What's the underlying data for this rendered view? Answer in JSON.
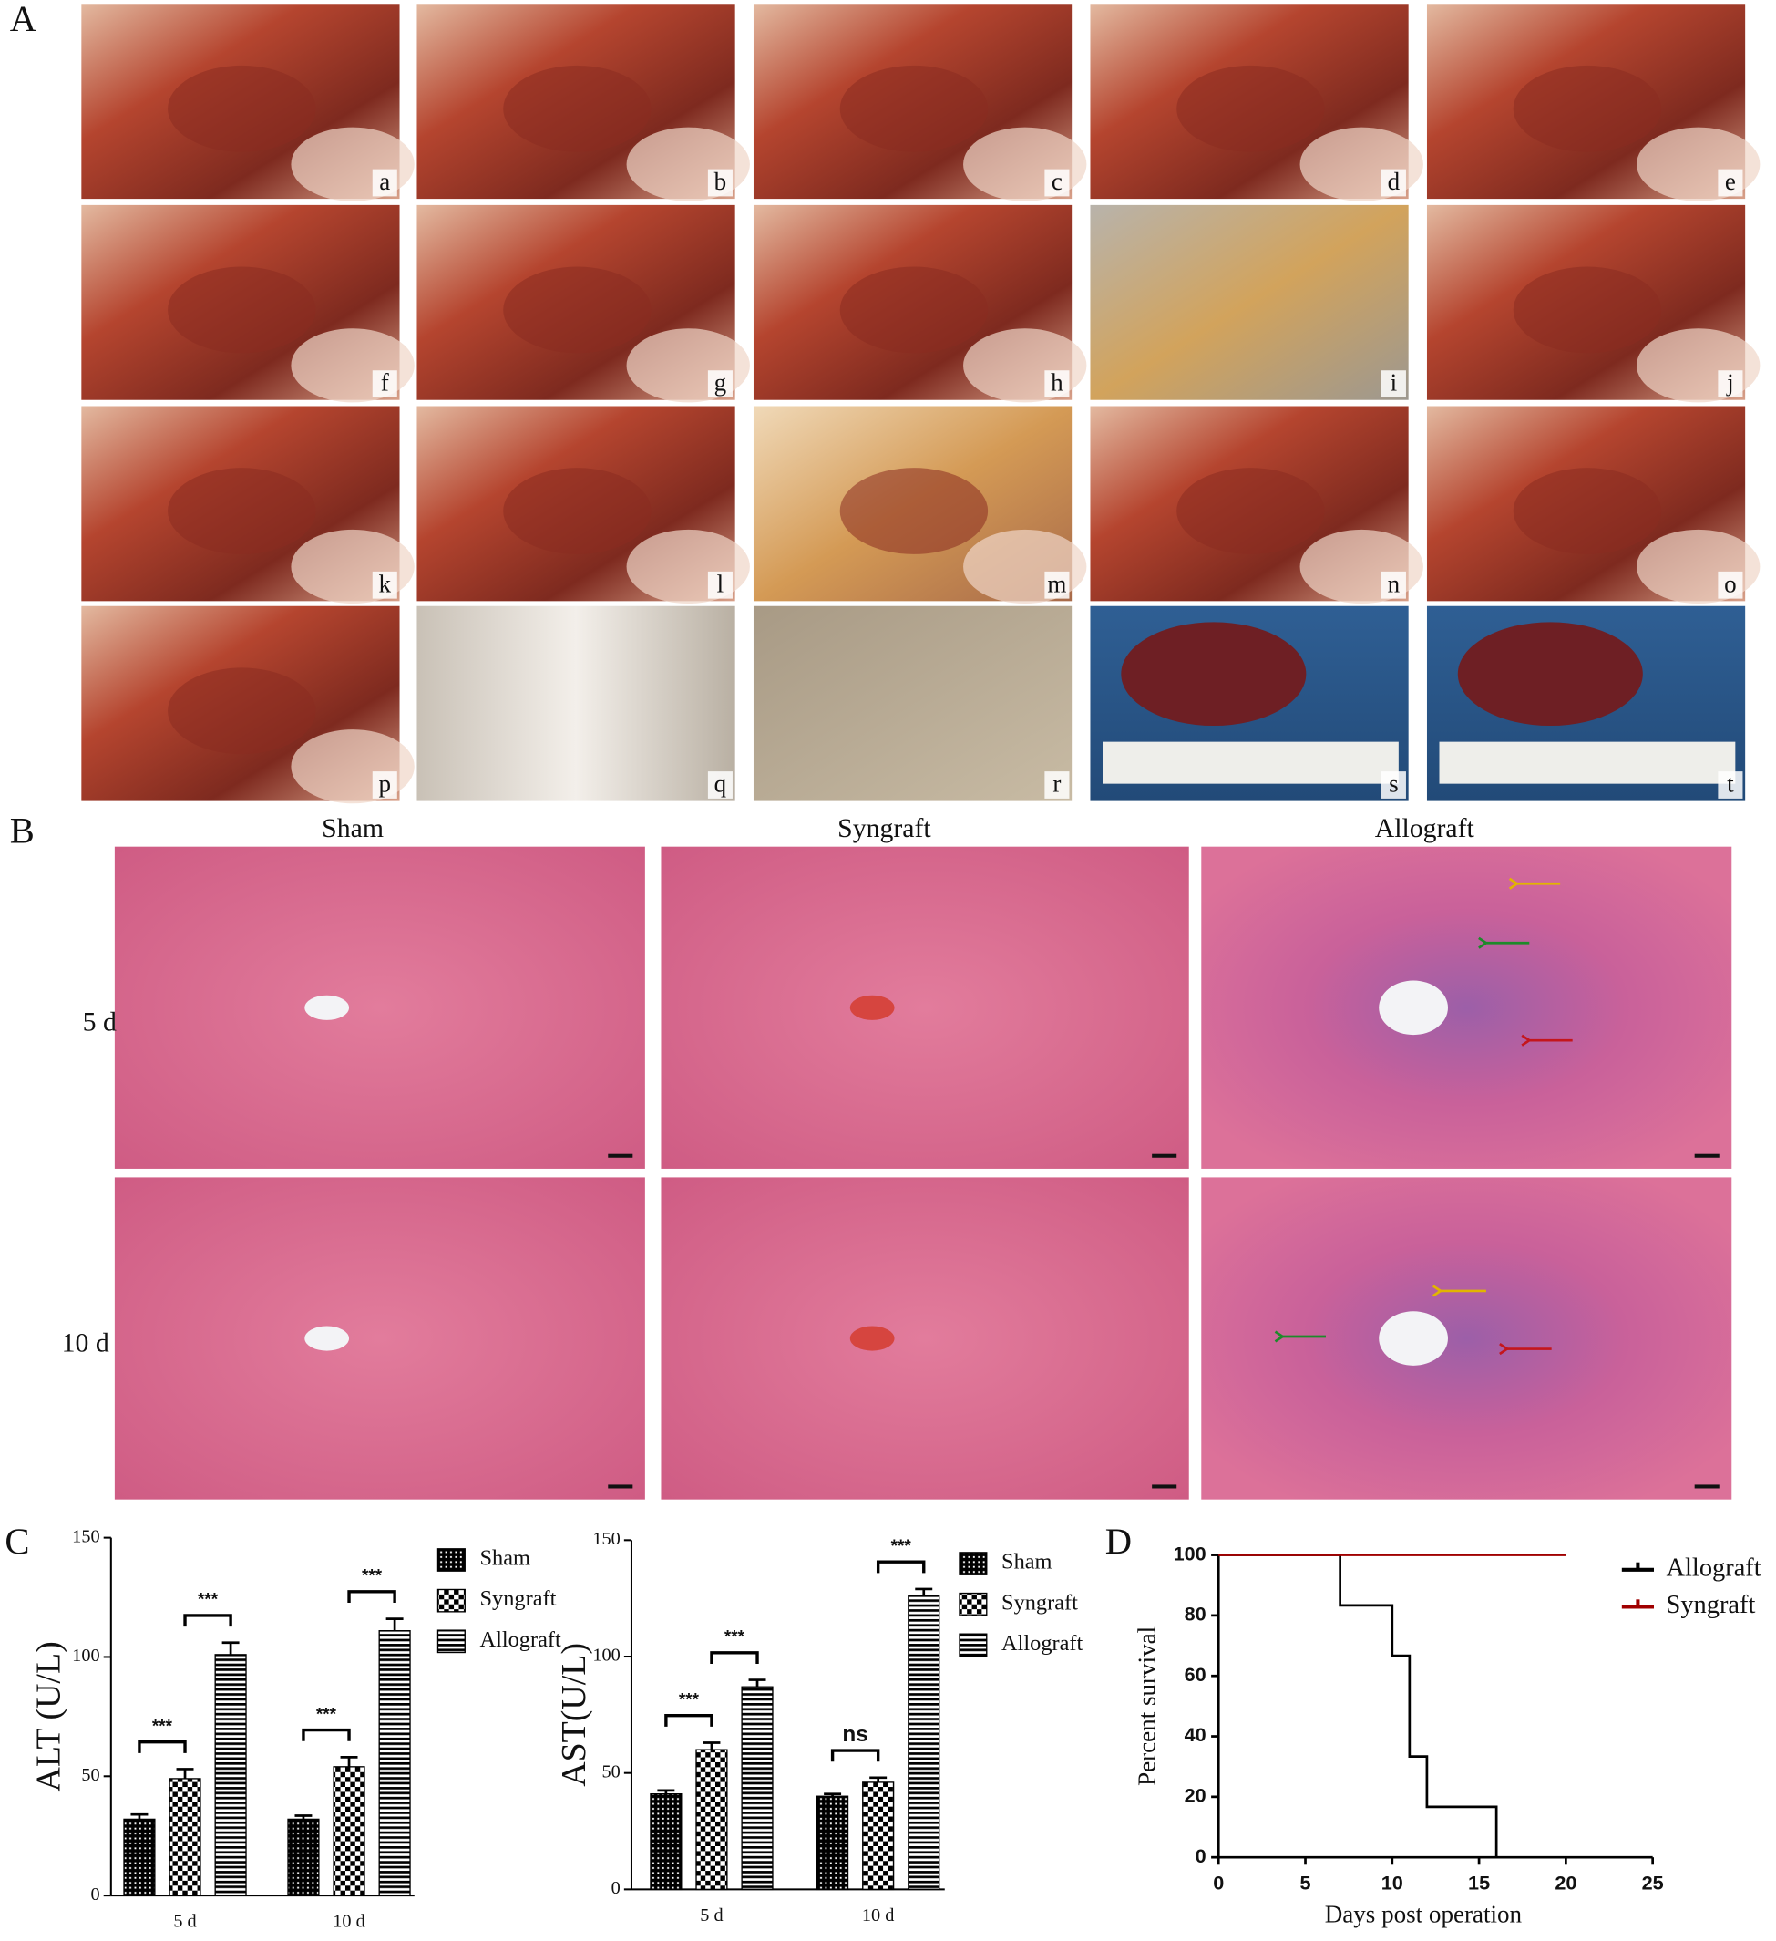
{
  "panel_a": {
    "label": "A",
    "photos": [
      "a",
      "b",
      "c",
      "d",
      "e",
      "f",
      "g",
      "h",
      "i",
      "j",
      "k",
      "l",
      "m",
      "n",
      "o",
      "p",
      "q",
      "r",
      "s",
      "t"
    ]
  },
  "panel_b": {
    "label": "B",
    "columns": [
      "Sham",
      "Syngraft",
      "Allograft"
    ],
    "rows": [
      "5 d",
      "10 d"
    ]
  },
  "panel_c": {
    "label": "C"
  },
  "panel_d": {
    "label": "D"
  },
  "chart_data": [
    {
      "type": "bar",
      "ylabel": "ALT (U/L)",
      "categories": [
        "5 d",
        "10 d"
      ],
      "ylim": [
        0,
        150
      ],
      "yticks": [
        0,
        50,
        100,
        150
      ],
      "series": [
        {
          "name": "Sham",
          "color": "#000000",
          "hatch": "crosshatch",
          "values": [
            32,
            32
          ],
          "errors": [
            2,
            1.5
          ]
        },
        {
          "name": "Syngraft",
          "color": "#000000",
          "hatch": "checker",
          "values": [
            49,
            54
          ],
          "errors": [
            4,
            4
          ]
        },
        {
          "name": "Allograft",
          "color": "#000000",
          "hatch": "stripes",
          "values": [
            101,
            111
          ],
          "errors": [
            5,
            5
          ]
        }
      ],
      "annotations": [
        {
          "text": "***",
          "category": 0,
          "from": 0,
          "to": 1
        },
        {
          "text": "***",
          "category": 0,
          "from": 1,
          "to": 2
        },
        {
          "text": "***",
          "category": 1,
          "from": 0,
          "to": 1
        },
        {
          "text": "***",
          "category": 1,
          "from": 1,
          "to": 2
        }
      ]
    },
    {
      "type": "bar",
      "ylabel": "AST(U/L)",
      "categories": [
        "5 d",
        "10 d"
      ],
      "ylim": [
        0,
        150
      ],
      "yticks": [
        0,
        50,
        100,
        150
      ],
      "series": [
        {
          "name": "Sham",
          "color": "#000000",
          "hatch": "crosshatch",
          "values": [
            41,
            40
          ],
          "errors": [
            1.5,
            1
          ]
        },
        {
          "name": "Syngraft",
          "color": "#000000",
          "hatch": "checker",
          "values": [
            60,
            46
          ],
          "errors": [
            3,
            2
          ]
        },
        {
          "name": "Allograft",
          "color": "#000000",
          "hatch": "stripes",
          "values": [
            87,
            126
          ],
          "errors": [
            3,
            3
          ]
        }
      ],
      "annotations": [
        {
          "text": "***",
          "category": 0,
          "from": 0,
          "to": 1
        },
        {
          "text": "***",
          "category": 0,
          "from": 1,
          "to": 2
        },
        {
          "text": "ns",
          "category": 1,
          "from": 0,
          "to": 1
        },
        {
          "text": "***",
          "category": 1,
          "from": 1,
          "to": 2
        }
      ]
    },
    {
      "type": "line",
      "xlabel": "Days post operation",
      "ylabel": "Percent survival",
      "xlim": [
        0,
        25
      ],
      "xticks": [
        0,
        5,
        10,
        15,
        20,
        25
      ],
      "ylim": [
        0,
        100
      ],
      "yticks": [
        0,
        20,
        40,
        60,
        80,
        100
      ],
      "series": [
        {
          "name": "Allograft",
          "color": "#000000",
          "x": [
            0,
            7,
            7,
            10,
            10,
            11,
            11,
            12,
            12,
            16,
            16
          ],
          "values": [
            100,
            100,
            83.33,
            83.33,
            66.67,
            66.67,
            33.33,
            33.33,
            16.67,
            16.67,
            0
          ]
        },
        {
          "name": "Syngraft",
          "color": "#a00000",
          "x": [
            0,
            20
          ],
          "values": [
            100,
            100
          ]
        }
      ]
    }
  ]
}
